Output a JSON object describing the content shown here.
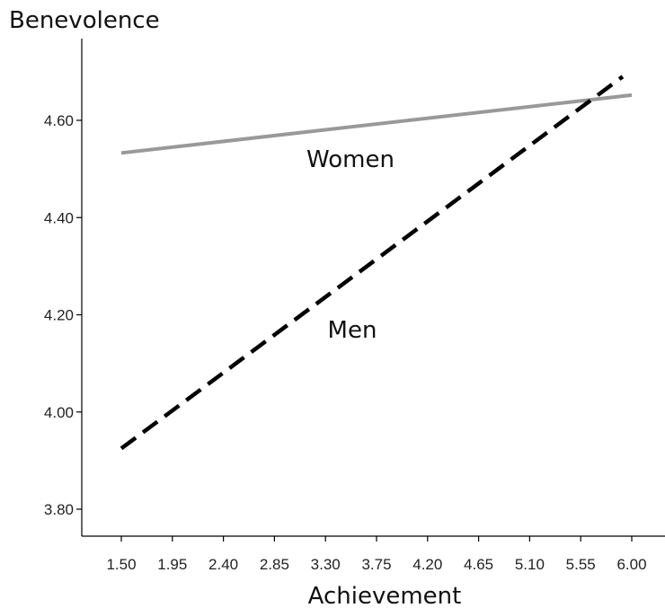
{
  "chart_data": {
    "type": "line",
    "title": "",
    "xlabel": "Achievement",
    "ylabel": "Benevolence",
    "x_ticks": [
      "1.50",
      "1.95",
      "2.40",
      "2.85",
      "3.30",
      "3.75",
      "4.20",
      "4.65",
      "5.10",
      "5.55",
      "6.00"
    ],
    "y_ticks": [
      "3.80",
      "4.00",
      "4.20",
      "4.40",
      "4.60"
    ],
    "xlim": [
      1.28,
      6.4
    ],
    "ylim": [
      3.75,
      4.76
    ],
    "grid": false,
    "series": [
      {
        "name": "Women",
        "color": "#999999",
        "dash": "solid",
        "x": [
          1.5,
          6.0
        ],
        "y": [
          4.533,
          4.652
        ]
      },
      {
        "name": "Men",
        "color": "#000000",
        "dash": "dashed",
        "x": [
          1.5,
          5.92
        ],
        "y": [
          3.925,
          4.69
        ]
      }
    ]
  }
}
